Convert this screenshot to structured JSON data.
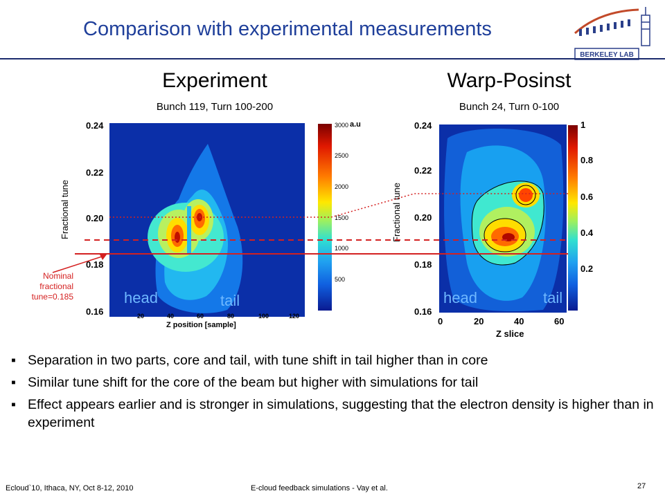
{
  "header": {
    "title": "Comparison with experimental measurements",
    "logo_text": "BERKELEY LAB"
  },
  "left_panel": {
    "title": "Experiment",
    "subtitle": "Bunch 119, Turn 100-200",
    "ylabel": "Fractional tune",
    "xlabel": "Z position [sample]",
    "yticks": [
      "0.24",
      "0.22",
      "0.20",
      "0.18",
      "0.16"
    ],
    "xticks": [
      "20",
      "40",
      "60",
      "80",
      "100",
      "120"
    ],
    "colorbar_ticks": [
      "3000",
      "2500",
      "2000",
      "1500",
      "1000",
      "500"
    ],
    "colorbar_unit": "a.u",
    "head_label": "head",
    "tail_label": "tail"
  },
  "right_panel": {
    "title": "Warp-Posinst",
    "subtitle": "Bunch 24, Turn 0-100",
    "ylabel": "Fractional tune",
    "xlabel": "Z slice",
    "yticks": [
      "0.24",
      "0.22",
      "0.20",
      "0.18",
      "0.16"
    ],
    "xticks": [
      "0",
      "20",
      "40",
      "60"
    ],
    "colorbar_ticks": [
      "1",
      "0.8",
      "0.6",
      "0.4",
      "0.2"
    ],
    "head_label": "head",
    "tail_label": "tail"
  },
  "annotation": {
    "nominal_line1": "Nominal",
    "nominal_line2": "fractional",
    "nominal_line3": "tune=0.185"
  },
  "bullets": [
    "Separation in two parts, core and tail, with tune shift in tail higher than in core",
    "Similar tune shift for the core of the beam but higher with simulations for tail",
    "Effect appears earlier and is stronger in simulations, suggesting that the electron density is higher than in experiment"
  ],
  "bullet_symbol": "▪",
  "footer": {
    "left": "Ecloud`10, Ithaca, NY, Oct 8-12, 2010",
    "center": "E-cloud feedback simulations - Vay et al.",
    "page": "27"
  }
}
